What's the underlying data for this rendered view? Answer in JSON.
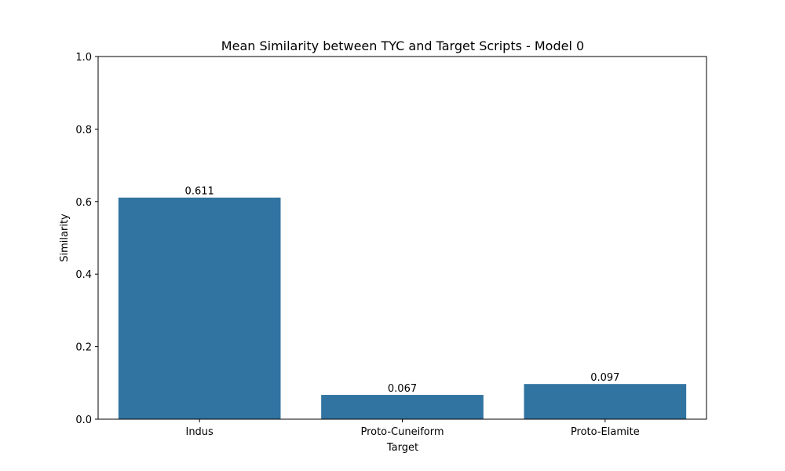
{
  "chart_data": {
    "type": "bar",
    "title": "Mean Similarity between TYC and Target Scripts - Model 0",
    "xlabel": "Target",
    "ylabel": "Similarity",
    "categories": [
      "Indus",
      "Proto-Cuneiform",
      "Proto-Elamite"
    ],
    "values": [
      0.611,
      0.067,
      0.097
    ],
    "value_labels": [
      "0.611",
      "0.067",
      "0.097"
    ],
    "ylim": [
      0,
      1.0
    ],
    "yticks": [
      "0.0",
      "0.2",
      "0.4",
      "0.6",
      "0.8",
      "1.0"
    ],
    "bar_color": "#3274a1",
    "grid": false
  }
}
